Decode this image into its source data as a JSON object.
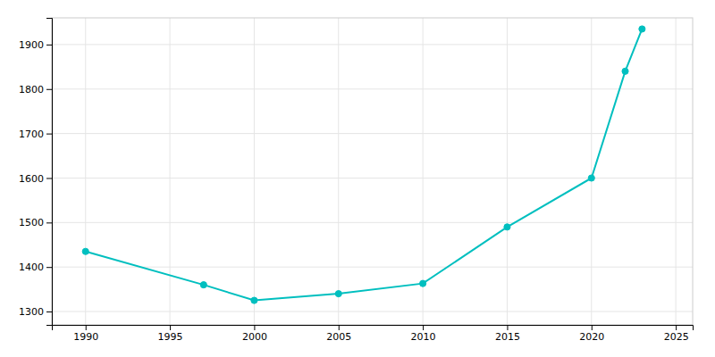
{
  "chart_data": {
    "type": "line",
    "x": [
      1990,
      1997,
      2000,
      2005,
      2010,
      2015,
      2020,
      2022,
      2023
    ],
    "values": [
      1435,
      1360,
      1325,
      1340,
      1363,
      1490,
      1600,
      1840,
      1935
    ],
    "color": "#00BFBF",
    "marker": "circle",
    "xlim": [
      1988,
      2026
    ],
    "ylim": [
      1270,
      1960
    ],
    "xticks": [
      1990,
      1995,
      2000,
      2005,
      2010,
      2015,
      2020,
      2025
    ],
    "yticks": [
      1300,
      1400,
      1500,
      1600,
      1700,
      1800,
      1900
    ],
    "grid": true
  }
}
